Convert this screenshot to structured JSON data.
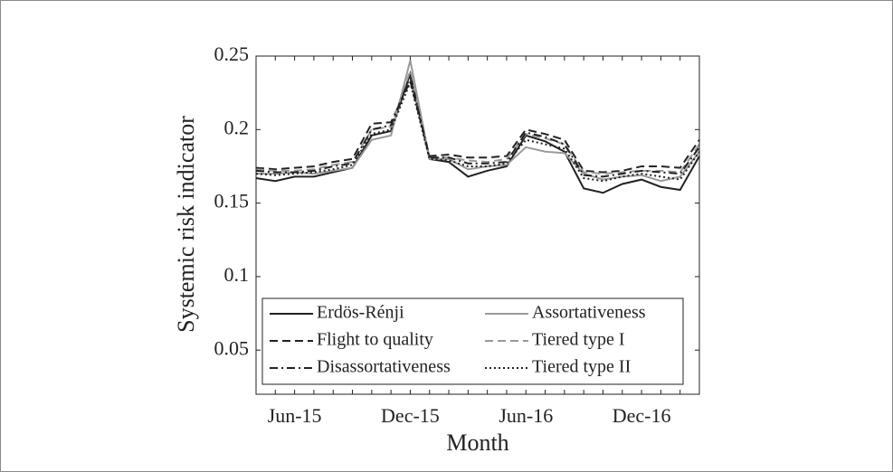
{
  "chart_data": {
    "type": "line",
    "xlabel": "Month",
    "ylabel": "Systemic risk indicator",
    "categories": [
      null,
      null,
      "Jun-15",
      null,
      null,
      null,
      null,
      null,
      "Dec-15",
      null,
      null,
      null,
      null,
      null,
      "Jun-16",
      null,
      null,
      null,
      null,
      null,
      "Dec-16",
      null,
      null,
      null
    ],
    "ylim": [
      0.02,
      0.25
    ],
    "yticks": [
      0.05,
      0.1,
      0.15,
      0.2,
      0.25
    ],
    "series": [
      {
        "name": "Erdös-Rénji",
        "color": "#222222",
        "linestyle": "solid",
        "values": [
          0.167,
          0.165,
          0.168,
          0.168,
          0.171,
          0.174,
          0.196,
          0.199,
          0.238,
          0.18,
          0.178,
          0.168,
          0.172,
          0.175,
          0.196,
          0.192,
          0.185,
          0.16,
          0.157,
          0.163,
          0.166,
          0.161,
          0.159,
          0.182
        ]
      },
      {
        "name": "Assortativeness",
        "color": "#999999",
        "linestyle": "solid",
        "values": [
          0.17,
          0.17,
          0.171,
          0.17,
          0.172,
          0.174,
          0.193,
          0.196,
          0.247,
          0.18,
          0.18,
          0.173,
          0.175,
          0.176,
          0.188,
          0.185,
          0.184,
          0.17,
          0.166,
          0.168,
          0.169,
          0.165,
          0.168,
          0.185
        ]
      },
      {
        "name": "Flight to quality",
        "color": "#222222",
        "linestyle": "dashed",
        "values": [
          0.174,
          0.173,
          0.174,
          0.175,
          0.178,
          0.18,
          0.204,
          0.205,
          0.233,
          0.182,
          0.183,
          0.181,
          0.181,
          0.182,
          0.2,
          0.197,
          0.193,
          0.172,
          0.171,
          0.172,
          0.175,
          0.175,
          0.174,
          0.193
        ]
      },
      {
        "name": "Tiered type I",
        "color": "#999999",
        "linestyle": "dashed",
        "values": [
          0.173,
          0.172,
          0.172,
          0.173,
          0.176,
          0.178,
          0.2,
          0.202,
          0.24,
          0.181,
          0.181,
          0.179,
          0.178,
          0.18,
          0.197,
          0.194,
          0.19,
          0.171,
          0.17,
          0.171,
          0.172,
          0.172,
          0.171,
          0.19
        ]
      },
      {
        "name": "Disassortativeness",
        "color": "#222222",
        "linestyle": "dashdot",
        "values": [
          0.172,
          0.171,
          0.171,
          0.172,
          0.175,
          0.177,
          0.2,
          0.203,
          0.236,
          0.181,
          0.181,
          0.177,
          0.177,
          0.178,
          0.198,
          0.195,
          0.19,
          0.169,
          0.168,
          0.17,
          0.172,
          0.171,
          0.17,
          0.188
        ]
      },
      {
        "name": "Tiered type II",
        "color": "#222222",
        "linestyle": "dotted",
        "values": [
          0.17,
          0.169,
          0.17,
          0.171,
          0.173,
          0.176,
          0.197,
          0.2,
          0.232,
          0.18,
          0.179,
          0.175,
          0.175,
          0.177,
          0.193,
          0.19,
          0.187,
          0.167,
          0.165,
          0.168,
          0.17,
          0.168,
          0.166,
          0.185
        ]
      }
    ]
  }
}
